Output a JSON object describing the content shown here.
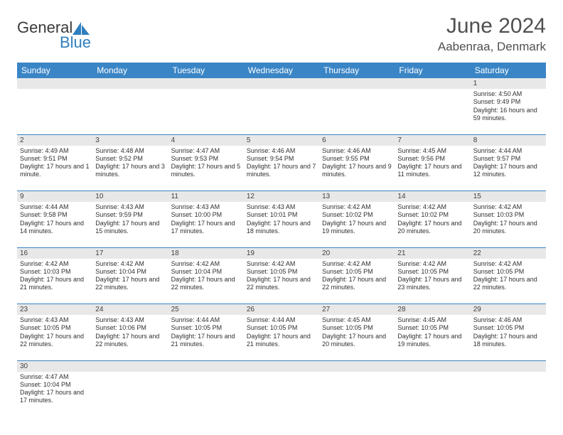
{
  "logo": {
    "text1": "General",
    "text2": "Blue",
    "icon_color": "#2f7fbf"
  },
  "title": "June 2024",
  "location": "Aabenraa, Denmark",
  "colors": {
    "header_bg": "#3a85c6",
    "header_text": "#ffffff",
    "row_alt": "#e8e8e8",
    "border": "#3a85c6",
    "text": "#303030"
  },
  "day_headers": [
    "Sunday",
    "Monday",
    "Tuesday",
    "Wednesday",
    "Thursday",
    "Friday",
    "Saturday"
  ],
  "weeks": [
    {
      "nums": [
        "",
        "",
        "",
        "",
        "",
        "",
        "1"
      ],
      "cells": [
        "",
        "",
        "",
        "",
        "",
        "",
        "Sunrise: 4:50 AM\nSunset: 9:49 PM\nDaylight: 16 hours and 59 minutes."
      ]
    },
    {
      "nums": [
        "2",
        "3",
        "4",
        "5",
        "6",
        "7",
        "8"
      ],
      "cells": [
        "Sunrise: 4:49 AM\nSunset: 9:51 PM\nDaylight: 17 hours and 1 minute.",
        "Sunrise: 4:48 AM\nSunset: 9:52 PM\nDaylight: 17 hours and 3 minutes.",
        "Sunrise: 4:47 AM\nSunset: 9:53 PM\nDaylight: 17 hours and 5 minutes.",
        "Sunrise: 4:46 AM\nSunset: 9:54 PM\nDaylight: 17 hours and 7 minutes.",
        "Sunrise: 4:46 AM\nSunset: 9:55 PM\nDaylight: 17 hours and 9 minutes.",
        "Sunrise: 4:45 AM\nSunset: 9:56 PM\nDaylight: 17 hours and 11 minutes.",
        "Sunrise: 4:44 AM\nSunset: 9:57 PM\nDaylight: 17 hours and 12 minutes."
      ]
    },
    {
      "nums": [
        "9",
        "10",
        "11",
        "12",
        "13",
        "14",
        "15"
      ],
      "cells": [
        "Sunrise: 4:44 AM\nSunset: 9:58 PM\nDaylight: 17 hours and 14 minutes.",
        "Sunrise: 4:43 AM\nSunset: 9:59 PM\nDaylight: 17 hours and 15 minutes.",
        "Sunrise: 4:43 AM\nSunset: 10:00 PM\nDaylight: 17 hours and 17 minutes.",
        "Sunrise: 4:43 AM\nSunset: 10:01 PM\nDaylight: 17 hours and 18 minutes.",
        "Sunrise: 4:42 AM\nSunset: 10:02 PM\nDaylight: 17 hours and 19 minutes.",
        "Sunrise: 4:42 AM\nSunset: 10:02 PM\nDaylight: 17 hours and 20 minutes.",
        "Sunrise: 4:42 AM\nSunset: 10:03 PM\nDaylight: 17 hours and 20 minutes."
      ]
    },
    {
      "nums": [
        "16",
        "17",
        "18",
        "19",
        "20",
        "21",
        "22"
      ],
      "cells": [
        "Sunrise: 4:42 AM\nSunset: 10:03 PM\nDaylight: 17 hours and 21 minutes.",
        "Sunrise: 4:42 AM\nSunset: 10:04 PM\nDaylight: 17 hours and 22 minutes.",
        "Sunrise: 4:42 AM\nSunset: 10:04 PM\nDaylight: 17 hours and 22 minutes.",
        "Sunrise: 4:42 AM\nSunset: 10:05 PM\nDaylight: 17 hours and 22 minutes.",
        "Sunrise: 4:42 AM\nSunset: 10:05 PM\nDaylight: 17 hours and 22 minutes.",
        "Sunrise: 4:42 AM\nSunset: 10:05 PM\nDaylight: 17 hours and 23 minutes.",
        "Sunrise: 4:42 AM\nSunset: 10:05 PM\nDaylight: 17 hours and 22 minutes."
      ]
    },
    {
      "nums": [
        "23",
        "24",
        "25",
        "26",
        "27",
        "28",
        "29"
      ],
      "cells": [
        "Sunrise: 4:43 AM\nSunset: 10:05 PM\nDaylight: 17 hours and 22 minutes.",
        "Sunrise: 4:43 AM\nSunset: 10:06 PM\nDaylight: 17 hours and 22 minutes.",
        "Sunrise: 4:44 AM\nSunset: 10:05 PM\nDaylight: 17 hours and 21 minutes.",
        "Sunrise: 4:44 AM\nSunset: 10:05 PM\nDaylight: 17 hours and 21 minutes.",
        "Sunrise: 4:45 AM\nSunset: 10:05 PM\nDaylight: 17 hours and 20 minutes.",
        "Sunrise: 4:45 AM\nSunset: 10:05 PM\nDaylight: 17 hours and 19 minutes.",
        "Sunrise: 4:46 AM\nSunset: 10:05 PM\nDaylight: 17 hours and 18 minutes."
      ]
    },
    {
      "nums": [
        "30",
        "",
        "",
        "",
        "",
        "",
        ""
      ],
      "cells": [
        "Sunrise: 4:47 AM\nSunset: 10:04 PM\nDaylight: 17 hours and 17 minutes.",
        "",
        "",
        "",
        "",
        "",
        ""
      ]
    }
  ]
}
